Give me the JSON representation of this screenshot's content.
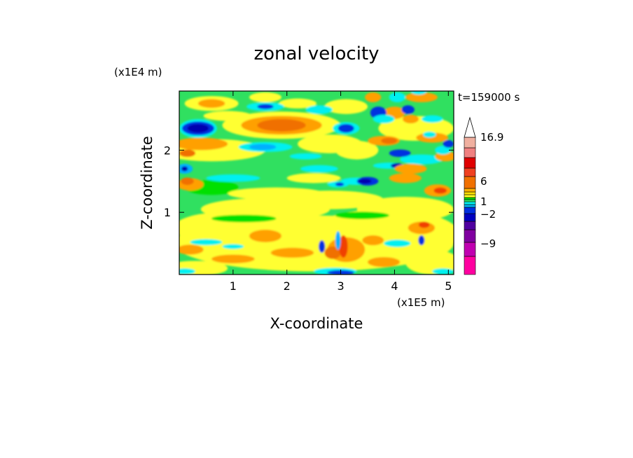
{
  "chart_data": {
    "type": "heatmap",
    "title": "zonal velocity",
    "xlabel": "X-coordinate",
    "ylabel": "Z-coordinate",
    "x_unit": "(x1E5 m)",
    "y_unit": "(x1E4 m)",
    "time_label": "t=159000 s",
    "xlim": [
      0,
      5.1
    ],
    "ylim": [
      0,
      2.95
    ],
    "x_ticks": [
      "1",
      "2",
      "3",
      "4",
      "5"
    ],
    "y_ticks": [
      "1",
      "2"
    ],
    "colorbar": {
      "labels": [
        "16.9",
        "6",
        "1",
        "-2",
        "-9"
      ],
      "colors": [
        "#ff00a0",
        "#c000b0",
        "#8000a0",
        "#5000a0",
        "#0000c0",
        "#0030e0",
        "#00b0f0",
        "#00f0f0",
        "#30f060",
        "#00e000",
        "#ffff20",
        "#ffe000",
        "#ffb000",
        "#f07000",
        "#f04020",
        "#e00000",
        "#f08080",
        "#f0b0a0",
        "#ffffff"
      ]
    },
    "background": "#30e060",
    "features": [
      {
        "x": 0.3,
        "z": 2.35,
        "value": -12
      },
      {
        "x": 1.9,
        "z": 2.4,
        "value": 8
      },
      {
        "x": 3.5,
        "z": 1.5,
        "value": -10
      },
      {
        "x": 4.8,
        "z": 1.35,
        "value": 6
      },
      {
        "x": 3.05,
        "z": 0.2,
        "value": 6
      }
    ]
  }
}
